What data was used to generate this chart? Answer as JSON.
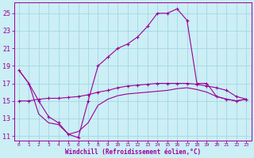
{
  "xlabel": "Windchill (Refroidissement éolien,°C)",
  "background_color": "#cceef5",
  "grid_color": "#99d4e0",
  "line_color": "#990099",
  "xlim": [
    -0.5,
    23.5
  ],
  "ylim": [
    10.5,
    26.2
  ],
  "xticks": [
    0,
    1,
    2,
    3,
    4,
    5,
    6,
    7,
    8,
    9,
    10,
    11,
    12,
    13,
    14,
    15,
    16,
    17,
    18,
    19,
    20,
    21,
    22,
    23
  ],
  "yticks": [
    11,
    13,
    15,
    17,
    19,
    21,
    23,
    25
  ],
  "line1_x": [
    0,
    1,
    2,
    3,
    4,
    5,
    6,
    7,
    8,
    9,
    10,
    11,
    12,
    13,
    14,
    15,
    16,
    17,
    18,
    19,
    20,
    21,
    22,
    23
  ],
  "line1_y": [
    18.5,
    17.0,
    15.0,
    13.2,
    12.5,
    11.2,
    10.8,
    15.0,
    19.0,
    20.0,
    21.0,
    21.5,
    22.3,
    23.5,
    25.0,
    25.0,
    25.5,
    24.2,
    17.0,
    17.0,
    15.5,
    15.2,
    15.0,
    15.2
  ],
  "line2_x": [
    0,
    1,
    2,
    3,
    4,
    5,
    6,
    7,
    8,
    9,
    10,
    11,
    12,
    13,
    14,
    15,
    16,
    17,
    18,
    19,
    20,
    21,
    22,
    23
  ],
  "line2_y": [
    15.0,
    15.0,
    15.2,
    15.3,
    15.3,
    15.4,
    15.5,
    15.7,
    16.0,
    16.2,
    16.5,
    16.7,
    16.8,
    16.9,
    17.0,
    17.0,
    17.0,
    17.0,
    16.9,
    16.7,
    16.5,
    16.2,
    15.5,
    15.2
  ],
  "line3_x": [
    0,
    1,
    2,
    3,
    4,
    5,
    6,
    7,
    8,
    9,
    10,
    11,
    12,
    13,
    14,
    15,
    16,
    17,
    18,
    19,
    20,
    21,
    22,
    23
  ],
  "line3_y": [
    18.5,
    17.0,
    13.5,
    12.5,
    12.3,
    11.2,
    11.5,
    12.5,
    14.5,
    15.2,
    15.6,
    15.8,
    15.9,
    16.0,
    16.1,
    16.2,
    16.4,
    16.5,
    16.3,
    16.0,
    15.5,
    15.2,
    15.0,
    15.2
  ]
}
